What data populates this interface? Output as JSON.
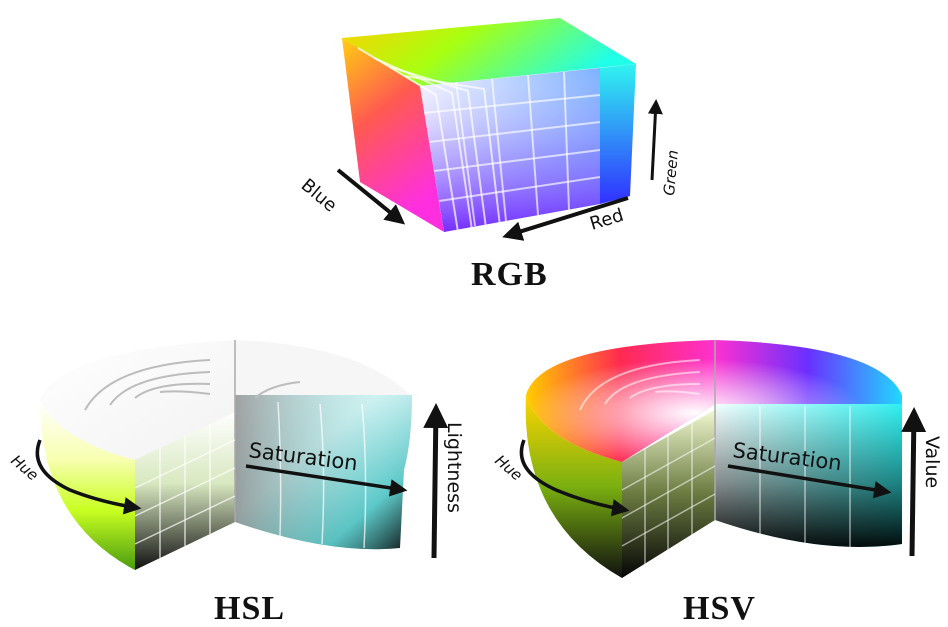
{
  "models": {
    "rgb": {
      "title": "RGB",
      "axes": {
        "blue": "Blue",
        "red": "Red",
        "green": "Green"
      }
    },
    "hsl": {
      "title": "HSL",
      "axes": {
        "hue": "Hue",
        "saturation": "Saturation",
        "lightness": "Lightness"
      }
    },
    "hsv": {
      "title": "HSV",
      "axes": {
        "hue": "Hue",
        "saturation": "Saturation",
        "value": "Value"
      }
    }
  },
  "colors": {
    "arrow": "#111111",
    "text": "#111111",
    "background": "#ffffff"
  }
}
